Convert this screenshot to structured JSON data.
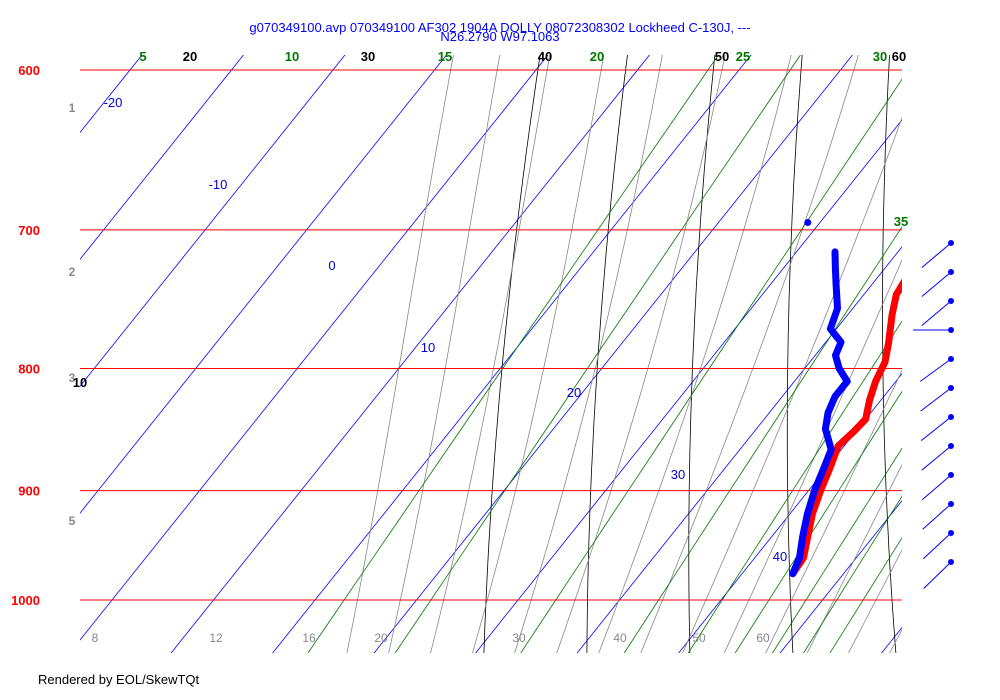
{
  "header": {
    "title_line1": "g070349100.avp 070349100 AF302 1904A DOLLY 08072308302 Lockheed C-130J, ---",
    "title_line2": "N26.2790 W97.1063"
  },
  "footer": {
    "credit": "Rendered by EOL/SkewTQt"
  },
  "colors": {
    "isobar": "#ff0000",
    "isotherm": "#0000ff",
    "dry_adiabat": "#000000",
    "moist_adiabat": "#888888",
    "mixing_ratio": "#007700",
    "temperature": "#ff0000",
    "dewpoint": "#0000ff",
    "wind_barb": "#0000ff"
  },
  "chart_data": {
    "type": "line",
    "subtype": "skew-T log-P diagram",
    "y_axis": {
      "quantity": "pressure (hPa)",
      "scale": "log",
      "range": [
        1000,
        600
      ],
      "ticks": [
        600,
        700,
        800,
        900,
        1000
      ]
    },
    "left_height_labels": [
      "1",
      "2",
      "3",
      "5"
    ],
    "isotherm_labels": [
      "-20",
      "-10",
      "0",
      "10",
      "20",
      "30",
      "40"
    ],
    "top_scale_labels": [
      "20",
      "30",
      "40",
      "50",
      "60"
    ],
    "right_top_label": "10",
    "mixing_ratio_labels": [
      "5",
      "10",
      "15",
      "20",
      "25",
      "30",
      "35"
    ],
    "bottom_scale_labels": [
      "8",
      "12",
      "16",
      "20",
      "30",
      "40",
      "50",
      "60"
    ],
    "grid": true,
    "series": [
      {
        "role": "temperature",
        "color": "#ff0000",
        "points": [
          {
            "p": 975,
            "t": 25.0
          },
          {
            "p": 960,
            "t": 24.8
          },
          {
            "p": 940,
            "t": 23.5
          },
          {
            "p": 920,
            "t": 22.2
          },
          {
            "p": 900,
            "t": 21.2
          },
          {
            "p": 880,
            "t": 20.3
          },
          {
            "p": 862,
            "t": 19.4
          },
          {
            "p": 850,
            "t": 19.8
          },
          {
            "p": 840,
            "t": 20.0
          },
          {
            "p": 825,
            "t": 18.9
          },
          {
            "p": 810,
            "t": 18.0
          },
          {
            "p": 795,
            "t": 17.4
          },
          {
            "p": 780,
            "t": 16.2
          },
          {
            "p": 760,
            "t": 14.4
          },
          {
            "p": 745,
            "t": 13.2
          },
          {
            "p": 730,
            "t": 12.8
          },
          {
            "p": 712,
            "t": 12.0
          }
        ],
        "endpoint_marker": {
          "p": 696,
          "t": 12.0
        }
      },
      {
        "role": "dewpoint",
        "color": "#0000ff",
        "points": [
          {
            "p": 975,
            "t": 25.0
          },
          {
            "p": 960,
            "t": 24.4
          },
          {
            "p": 940,
            "t": 23.0
          },
          {
            "p": 920,
            "t": 21.7
          },
          {
            "p": 900,
            "t": 20.6
          },
          {
            "p": 880,
            "t": 19.7
          },
          {
            "p": 865,
            "t": 19.0
          },
          {
            "p": 848,
            "t": 16.8
          },
          {
            "p": 835,
            "t": 15.8
          },
          {
            "p": 822,
            "t": 15.2
          },
          {
            "p": 810,
            "t": 15.2
          },
          {
            "p": 800,
            "t": 13.4
          },
          {
            "p": 790,
            "t": 12.0
          },
          {
            "p": 780,
            "t": 11.5
          },
          {
            "p": 770,
            "t": 9.4
          },
          {
            "p": 755,
            "t": 8.5
          },
          {
            "p": 738,
            "t": 6.5
          },
          {
            "p": 727,
            "t": 5.2
          },
          {
            "p": 715,
            "t": 3.8
          }
        ],
        "endpoint_marker": {
          "p": 695,
          "t": -1.2
        }
      }
    ],
    "wind_barbs_count": 12
  }
}
